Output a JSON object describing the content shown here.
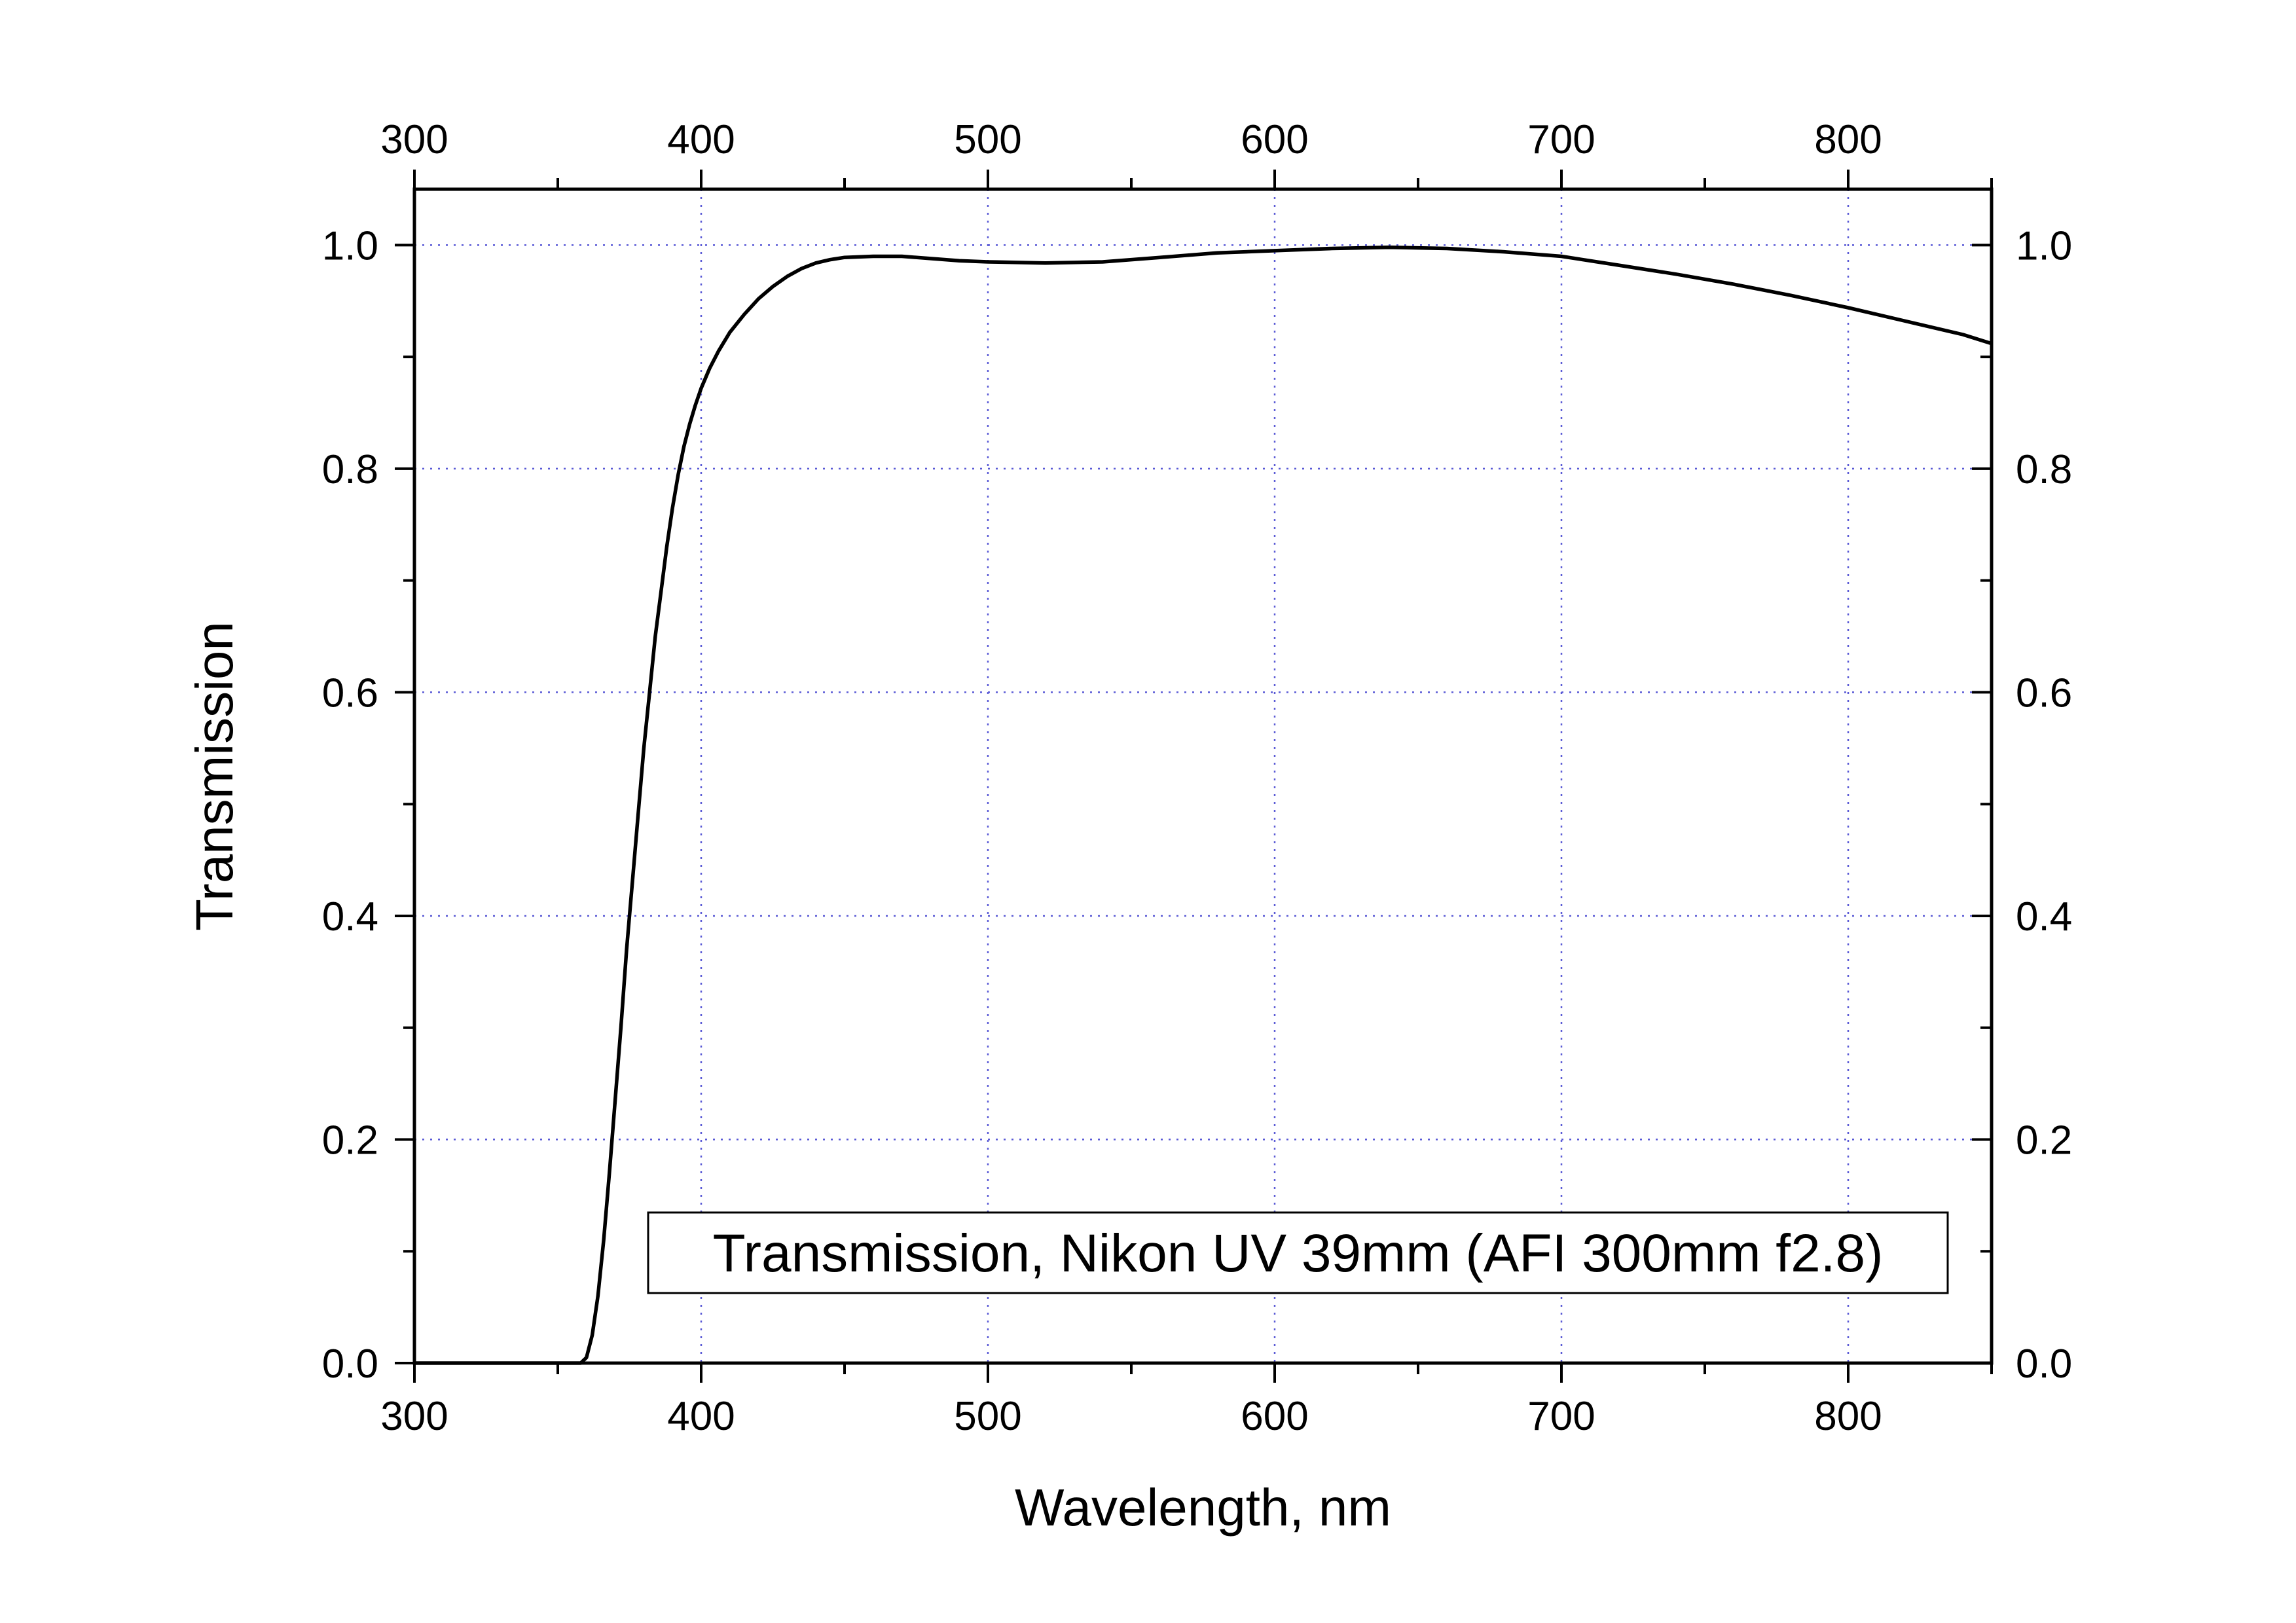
{
  "chart_data": {
    "type": "line",
    "xlabel": "Wavelength, nm",
    "ylabel": "Transmission",
    "xlim": [
      300,
      850
    ],
    "ylim": [
      0,
      1.05
    ],
    "x_ticks": [
      "300",
      "400",
      "500",
      "600",
      "700",
      "800"
    ],
    "x_tick_values": [
      300,
      400,
      500,
      600,
      700,
      800
    ],
    "y_ticks": [
      "0.0",
      "0.2",
      "0.4",
      "0.6",
      "0.8",
      "1.0"
    ],
    "y_tick_values": [
      0.0,
      0.2,
      0.4,
      0.6,
      0.8,
      1.0
    ],
    "x_minor_step": 50,
    "y_minor_step": 0.1,
    "grid": true,
    "secondary_axes": {
      "top": true,
      "right": true
    },
    "legend": {
      "position": "bottom-right",
      "entries": [
        "Transmission, Nikon UV 39mm (AFI 300mm f2.8)"
      ]
    },
    "series": [
      {
        "color": "#000000",
        "x": [
          300,
          340,
          358,
          360,
          362,
          364,
          366,
          368,
          370,
          372,
          374,
          376,
          378,
          380,
          382,
          384,
          386,
          388,
          390,
          392,
          394,
          396,
          398,
          400,
          403,
          406,
          410,
          415,
          420,
          425,
          430,
          435,
          440,
          445,
          450,
          460,
          470,
          480,
          490,
          500,
          520,
          540,
          560,
          580,
          600,
          620,
          640,
          660,
          680,
          700,
          720,
          740,
          760,
          780,
          800,
          820,
          840,
          850
        ],
        "y": [
          0.0,
          0.0,
          0.0,
          0.005,
          0.025,
          0.06,
          0.11,
          0.17,
          0.235,
          0.3,
          0.37,
          0.43,
          0.49,
          0.55,
          0.6,
          0.65,
          0.69,
          0.73,
          0.765,
          0.795,
          0.82,
          0.84,
          0.857,
          0.872,
          0.89,
          0.905,
          0.922,
          0.938,
          0.952,
          0.963,
          0.972,
          0.979,
          0.984,
          0.987,
          0.989,
          0.99,
          0.99,
          0.988,
          0.986,
          0.985,
          0.984,
          0.985,
          0.989,
          0.993,
          0.995,
          0.997,
          0.998,
          0.997,
          0.994,
          0.99,
          0.982,
          0.974,
          0.965,
          0.955,
          0.944,
          0.932,
          0.92,
          0.912
        ]
      }
    ]
  }
}
